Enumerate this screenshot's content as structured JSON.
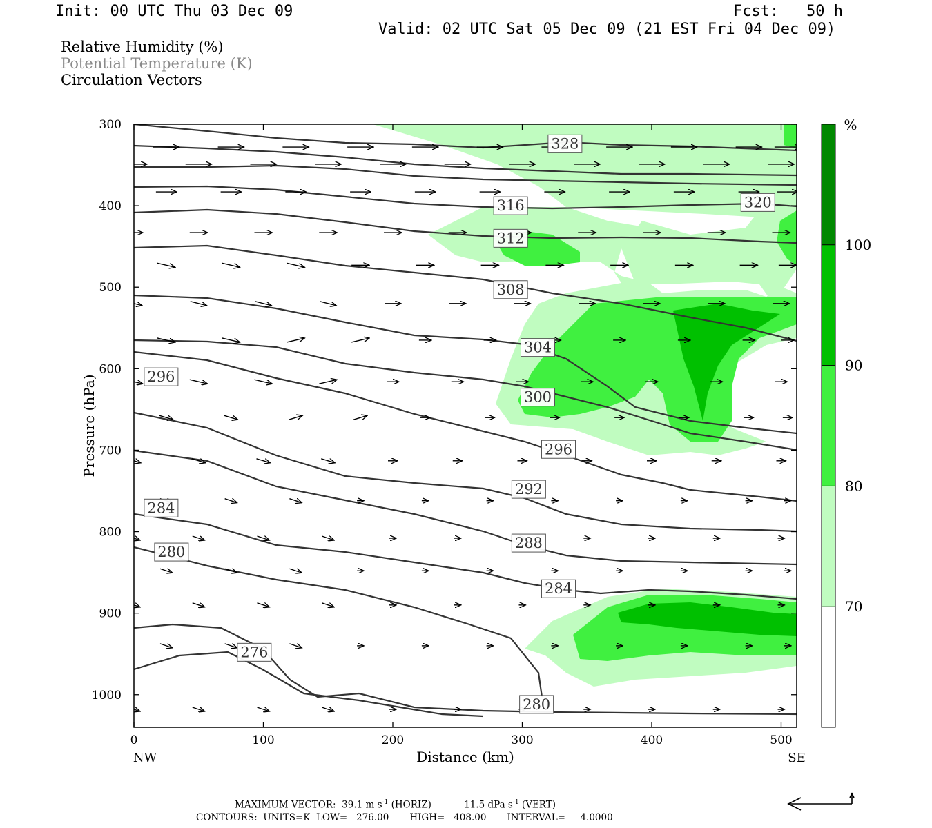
{
  "header": {
    "init": "Init: 00 UTC Thu 03 Dec 09",
    "fcst": "Fcst:   50 h",
    "valid": "Valid: 02 UTC Sat 05 Dec 09 (21 EST Fri 04 Dec 09)"
  },
  "fields": [
    {
      "label": "Relative Humidity (%)",
      "color": "#000000"
    },
    {
      "label": "Potential Temperature (K)",
      "color": "#8a8a8a"
    },
    {
      "label": "Circulation Vectors",
      "color": "#000000"
    }
  ],
  "footer": {
    "max_label": "MAXIMUM VECTOR:",
    "horiz_value": "39.1 m s",
    "horiz_unit": "(HORIZ)",
    "vert_value": "11.5 dPa s",
    "vert_unit": "(VERT)",
    "exp": "-1",
    "contours": "CONTOURS:  UNITS=K  LOW=   276.00       HIGH=   408.00       INTERVAL=     4.0000"
  },
  "chart_data": {
    "type": "cross-section",
    "xlabel": "Distance (km)",
    "ylabel": "Pressure (hPa)",
    "xlim": [
      0,
      512
    ],
    "ylim": [
      300,
      1040
    ],
    "y_log": false,
    "x_ticks": [
      0,
      100,
      200,
      300,
      400,
      500
    ],
    "y_ticks": [
      300,
      400,
      500,
      600,
      700,
      800,
      900,
      1000
    ],
    "x_end_labels": {
      "left": "NW",
      "right": "SE"
    },
    "rh_colorbar": {
      "unit": "%",
      "levels": [
        70,
        80,
        90,
        100
      ],
      "colors": [
        "#ffffff",
        "#c0fcc0",
        "#40f040",
        "#00c000",
        "#008800"
      ]
    },
    "theta_labels": [
      {
        "text": "328",
        "x": 333,
        "p": 324
      },
      {
        "text": "320",
        "x": 482,
        "p": 396
      },
      {
        "text": "316",
        "x": 291,
        "p": 400
      },
      {
        "text": "312",
        "x": 291,
        "p": 440
      },
      {
        "text": "308",
        "x": 291,
        "p": 503
      },
      {
        "text": "304",
        "x": 312,
        "p": 574
      },
      {
        "text": "300",
        "x": 312,
        "p": 635
      },
      {
        "text": "296",
        "x": 21,
        "p": 610
      },
      {
        "text": "296",
        "x": 328,
        "p": 699
      },
      {
        "text": "292",
        "x": 305,
        "p": 748
      },
      {
        "text": "288",
        "x": 305,
        "p": 814
      },
      {
        "text": "284",
        "x": 21,
        "p": 771
      },
      {
        "text": "284",
        "x": 328,
        "p": 870
      },
      {
        "text": "280",
        "x": 29,
        "p": 825
      },
      {
        "text": "280",
        "x": 311,
        "p": 1012
      },
      {
        "text": "276",
        "x": 93,
        "p": 948
      }
    ]
  }
}
